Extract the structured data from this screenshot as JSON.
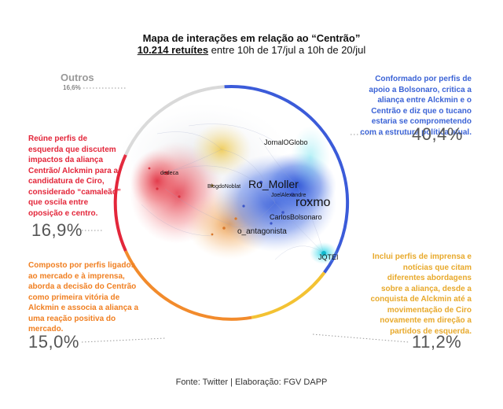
{
  "title": "Mapa de interações em relação ao “Centrão”",
  "subtitle": {
    "count": "10.214 retuítes",
    "rest": " entre 10h de 17/jul a 10h de 20/jul"
  },
  "segments": {
    "outros": {
      "label": "Outros",
      "value": "16,6%"
    },
    "blue": {
      "text": "Conformado por perfis de apoio a Bolsonaro, critica a aliança entre Alckmin e o Centrão e diz que o tucano estaria se comprometendo com a estrutura política atual.",
      "value": "40,4%"
    },
    "red": {
      "text": "Reúne perfis de esquerda que discutem impactos da aliança Centrão/ Alckmin para a candidatura de Ciro, considerado “camaleão” que oscila entre oposição e centro.",
      "value": "16,9%"
    },
    "orange": {
      "text": "Composto por perfis ligados ao mercado e à imprensa, aborda a decisão do Centrão como primeira vitória de Alckmin e associa a aliança a uma reação positiva do mercado.",
      "value": "15,0%"
    },
    "yellow": {
      "text": "Inclui perfis de imprensa e notícias que citam diferentes abordagens sobre a aliança, desde a conquista de Alckmin até a movimentação de Ciro novamente em direção a partidos de esquerda.",
      "value": "11,2%"
    }
  },
  "nodes": {
    "jornaloglobo": "JornalOGlobo",
    "ro_moller": "Ro_Moller",
    "roxmo": "roxmo",
    "joelalexandre": "JoelAlexandre",
    "carlosbolsonaro": "CarlosBolsonaro",
    "o_antagonista": "o_antagonista",
    "jqtei": "JQTEI",
    "blogdonoblat": "BlogdoNoblat",
    "dedeca": "dedeca"
  },
  "colors": {
    "blue": "#3b5bd9",
    "red": "#e3263a",
    "orange": "#f28b2c",
    "yellow": "#f3c233",
    "gray": "#d9d9d9",
    "blue_text": "#3b63d6",
    "red_text": "#e3263a",
    "orange_text": "#f07f21",
    "yellow_text": "#e8a92b"
  },
  "footer": "Fonte: Twitter | Elaboração: FGV DAPP"
}
